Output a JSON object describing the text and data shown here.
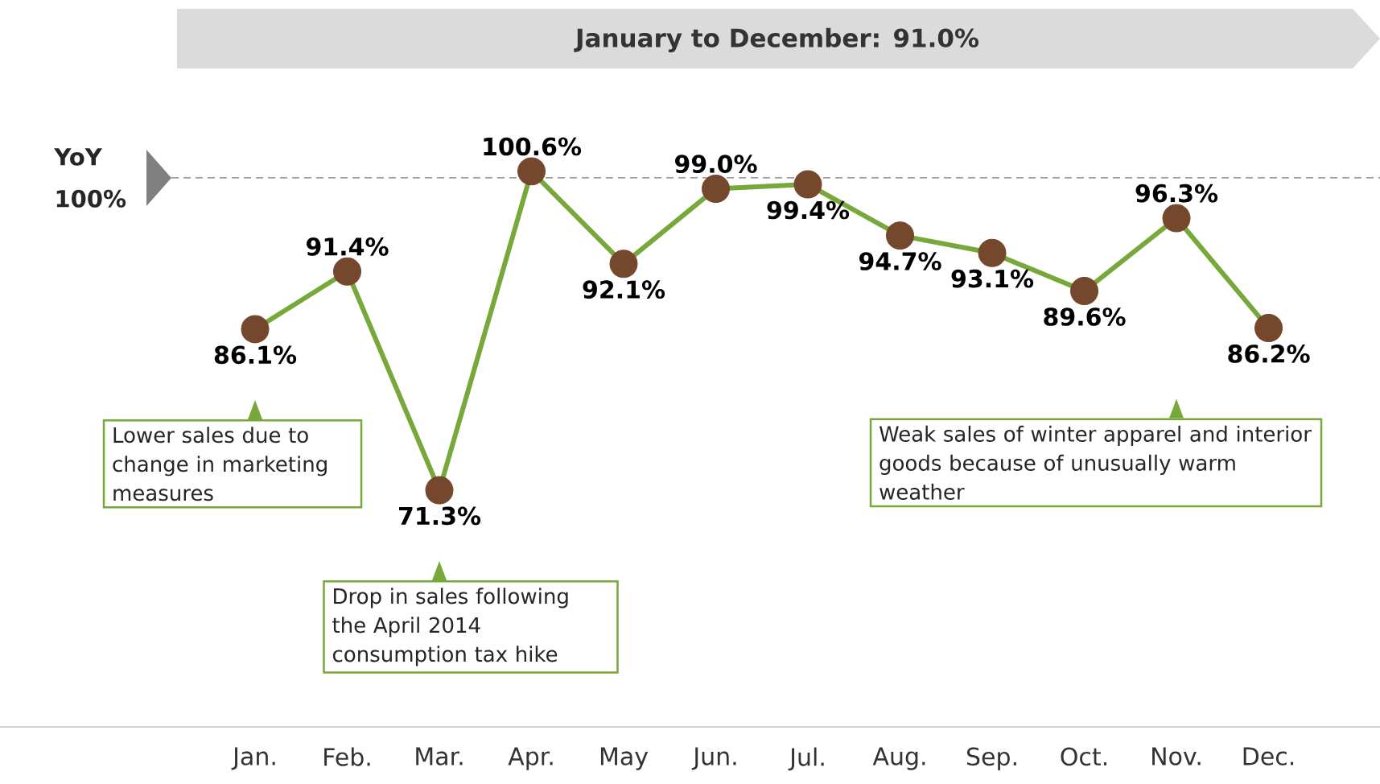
{
  "chart_data": {
    "type": "line",
    "title": "January to December: 91.0%",
    "categories": [
      "Jan.",
      "Feb.",
      "Mar.",
      "Apr.",
      "May",
      "Jun.",
      "Jul.",
      "Aug.",
      "Sep.",
      "Oct.",
      "Nov.",
      "Dec."
    ],
    "series": [
      {
        "color": "#77a83a",
        "values": [
          86.1,
          91.4,
          71.3,
          100.6,
          92.1,
          99.0,
          99.4,
          94.7,
          93.1,
          89.6,
          96.3,
          86.2
        ],
        "value_labels": [
          "86.1%",
          "91.4%",
          "71.3%",
          "100.6%",
          "92.1%",
          "99.0%",
          "99.4%",
          "94.7%",
          "93.1%",
          "89.6%",
          "96.3%",
          "86.2%"
        ]
      }
    ],
    "marker": "circle",
    "ref_lines": [
      {
        "axis": "y",
        "value": 100,
        "label": "YoY 100%",
        "color": "#808080",
        "line_style": "dashed"
      }
    ],
    "annotations": [
      "Lower sales due to change in marketing measures",
      "Drop in sales following the April 2014 consumption tax hike",
      "Weak sales of winter apparel and interior goods because of unusually warm weather"
    ]
  }
}
